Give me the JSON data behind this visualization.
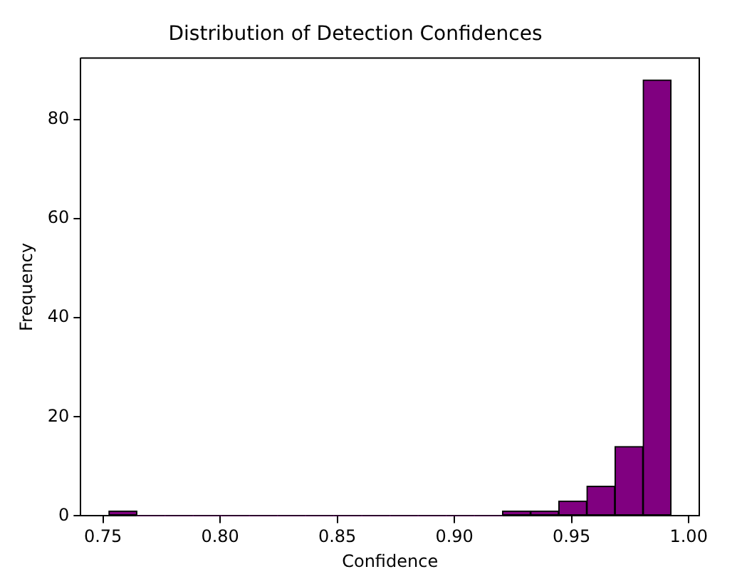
{
  "chart_data": {
    "type": "histogram",
    "title": "Distribution of Detection Confidences",
    "xlabel": "Confidence",
    "ylabel": "Frequency",
    "bins": [
      0.7525,
      0.7645,
      0.7765,
      0.7885,
      0.8005,
      0.8125,
      0.8245,
      0.8365,
      0.8485,
      0.8605,
      0.8725,
      0.8845,
      0.8965,
      0.9085,
      0.9205,
      0.9325,
      0.9445,
      0.9565,
      0.9685,
      0.9805,
      0.9925
    ],
    "values": [
      1,
      0,
      0,
      0,
      0,
      0,
      0,
      0,
      0,
      0,
      0,
      0,
      0,
      0,
      1,
      1,
      3,
      6,
      14,
      88
    ],
    "color": "#800080",
    "xlim": [
      0.7405,
      1.0045
    ],
    "xticks": [
      {
        "value": 0.75,
        "label": "0.75"
      },
      {
        "value": 0.8,
        "label": "0.80"
      },
      {
        "value": 0.85,
        "label": "0.85"
      },
      {
        "value": 0.9,
        "label": "0.90"
      },
      {
        "value": 0.95,
        "label": "0.95"
      },
      {
        "value": 1,
        "label": "1.00"
      }
    ],
    "ylim": [
      0,
      92.4
    ],
    "yticks": [
      0,
      20,
      40,
      60,
      80
    ],
    "grid": false,
    "legend": false
  }
}
